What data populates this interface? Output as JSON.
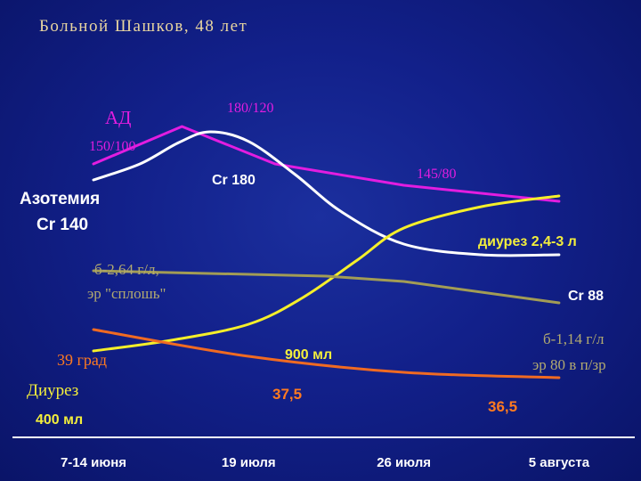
{
  "title": "Больной Шашков, 48 лет",
  "colors": {
    "bp": "#e21de0",
    "creatinine": "#ffffff",
    "diuresis": "#f5ef2a",
    "protein": "#a29c55",
    "temperature": "#f06a22",
    "bp_text": "#e21de0",
    "temp_text": "#ff7a20",
    "yellow_text": "#f3ee3c",
    "olive_text": "#b2aa70"
  },
  "chart_data": {
    "type": "line",
    "categories": [
      "7-14 июня",
      "19 июля",
      "26 июля",
      "5 августа"
    ],
    "series": [
      {
        "key": "bp",
        "name": "АД",
        "points": [
          [
            0,
            0.55
          ],
          [
            0.57,
            0.9
          ],
          [
            1.17,
            0.55
          ],
          [
            2,
            0.35
          ],
          [
            3,
            0.2
          ]
        ]
      },
      {
        "key": "creatinine",
        "name": "Азотемия",
        "points": [
          [
            0,
            0.4
          ],
          [
            0.3,
            0.55
          ],
          [
            0.55,
            0.75
          ],
          [
            0.75,
            0.85
          ],
          [
            1,
            0.76
          ],
          [
            1.3,
            0.45
          ],
          [
            1.6,
            0.1
          ],
          [
            2,
            -0.2
          ],
          [
            2.5,
            -0.3
          ],
          [
            3,
            -0.3
          ]
        ]
      },
      {
        "key": "diuresis",
        "name": "Диурез",
        "points": [
          [
            0,
            -1.2
          ],
          [
            0.5,
            -1.1
          ],
          [
            1,
            -0.95
          ],
          [
            1.35,
            -0.7
          ],
          [
            1.7,
            -0.35
          ],
          [
            2,
            -0.05
          ],
          [
            2.5,
            0.15
          ],
          [
            3,
            0.25
          ]
        ]
      },
      {
        "key": "protein",
        "name": "",
        "points": [
          [
            0,
            -0.45
          ],
          [
            1.5,
            -0.5
          ],
          [
            2,
            -0.55
          ],
          [
            3,
            -0.75
          ]
        ]
      },
      {
        "key": "temperature",
        "name": "",
        "points": [
          [
            0,
            -1.0
          ],
          [
            1,
            -1.25
          ],
          [
            2,
            -1.4
          ],
          [
            3,
            -1.45
          ]
        ]
      }
    ],
    "annotations": {
      "bp_label": "АД",
      "bp_start": "150/100",
      "bp_peak": "180/120",
      "bp_mid": "145/80",
      "cr_label1": "Азотемия",
      "cr_label2": "Cr 140",
      "cr_peak": "Cr 180",
      "cr_end": "Cr 88",
      "prot_start1": "б-2,64 г/л,",
      "prot_start2": "эр \"сплошь\"",
      "prot_end1": "б-1,14 г/л",
      "prot_end2": "эр 80 в п/зр",
      "temp_label": "39 град",
      "temp_mid": "37,5",
      "temp_end": "36,5",
      "diur_label": "Диурез",
      "diur_start": "400 мл",
      "diur_mid": "900 мл",
      "diur_end": "диурез 2,4-3 л"
    }
  }
}
